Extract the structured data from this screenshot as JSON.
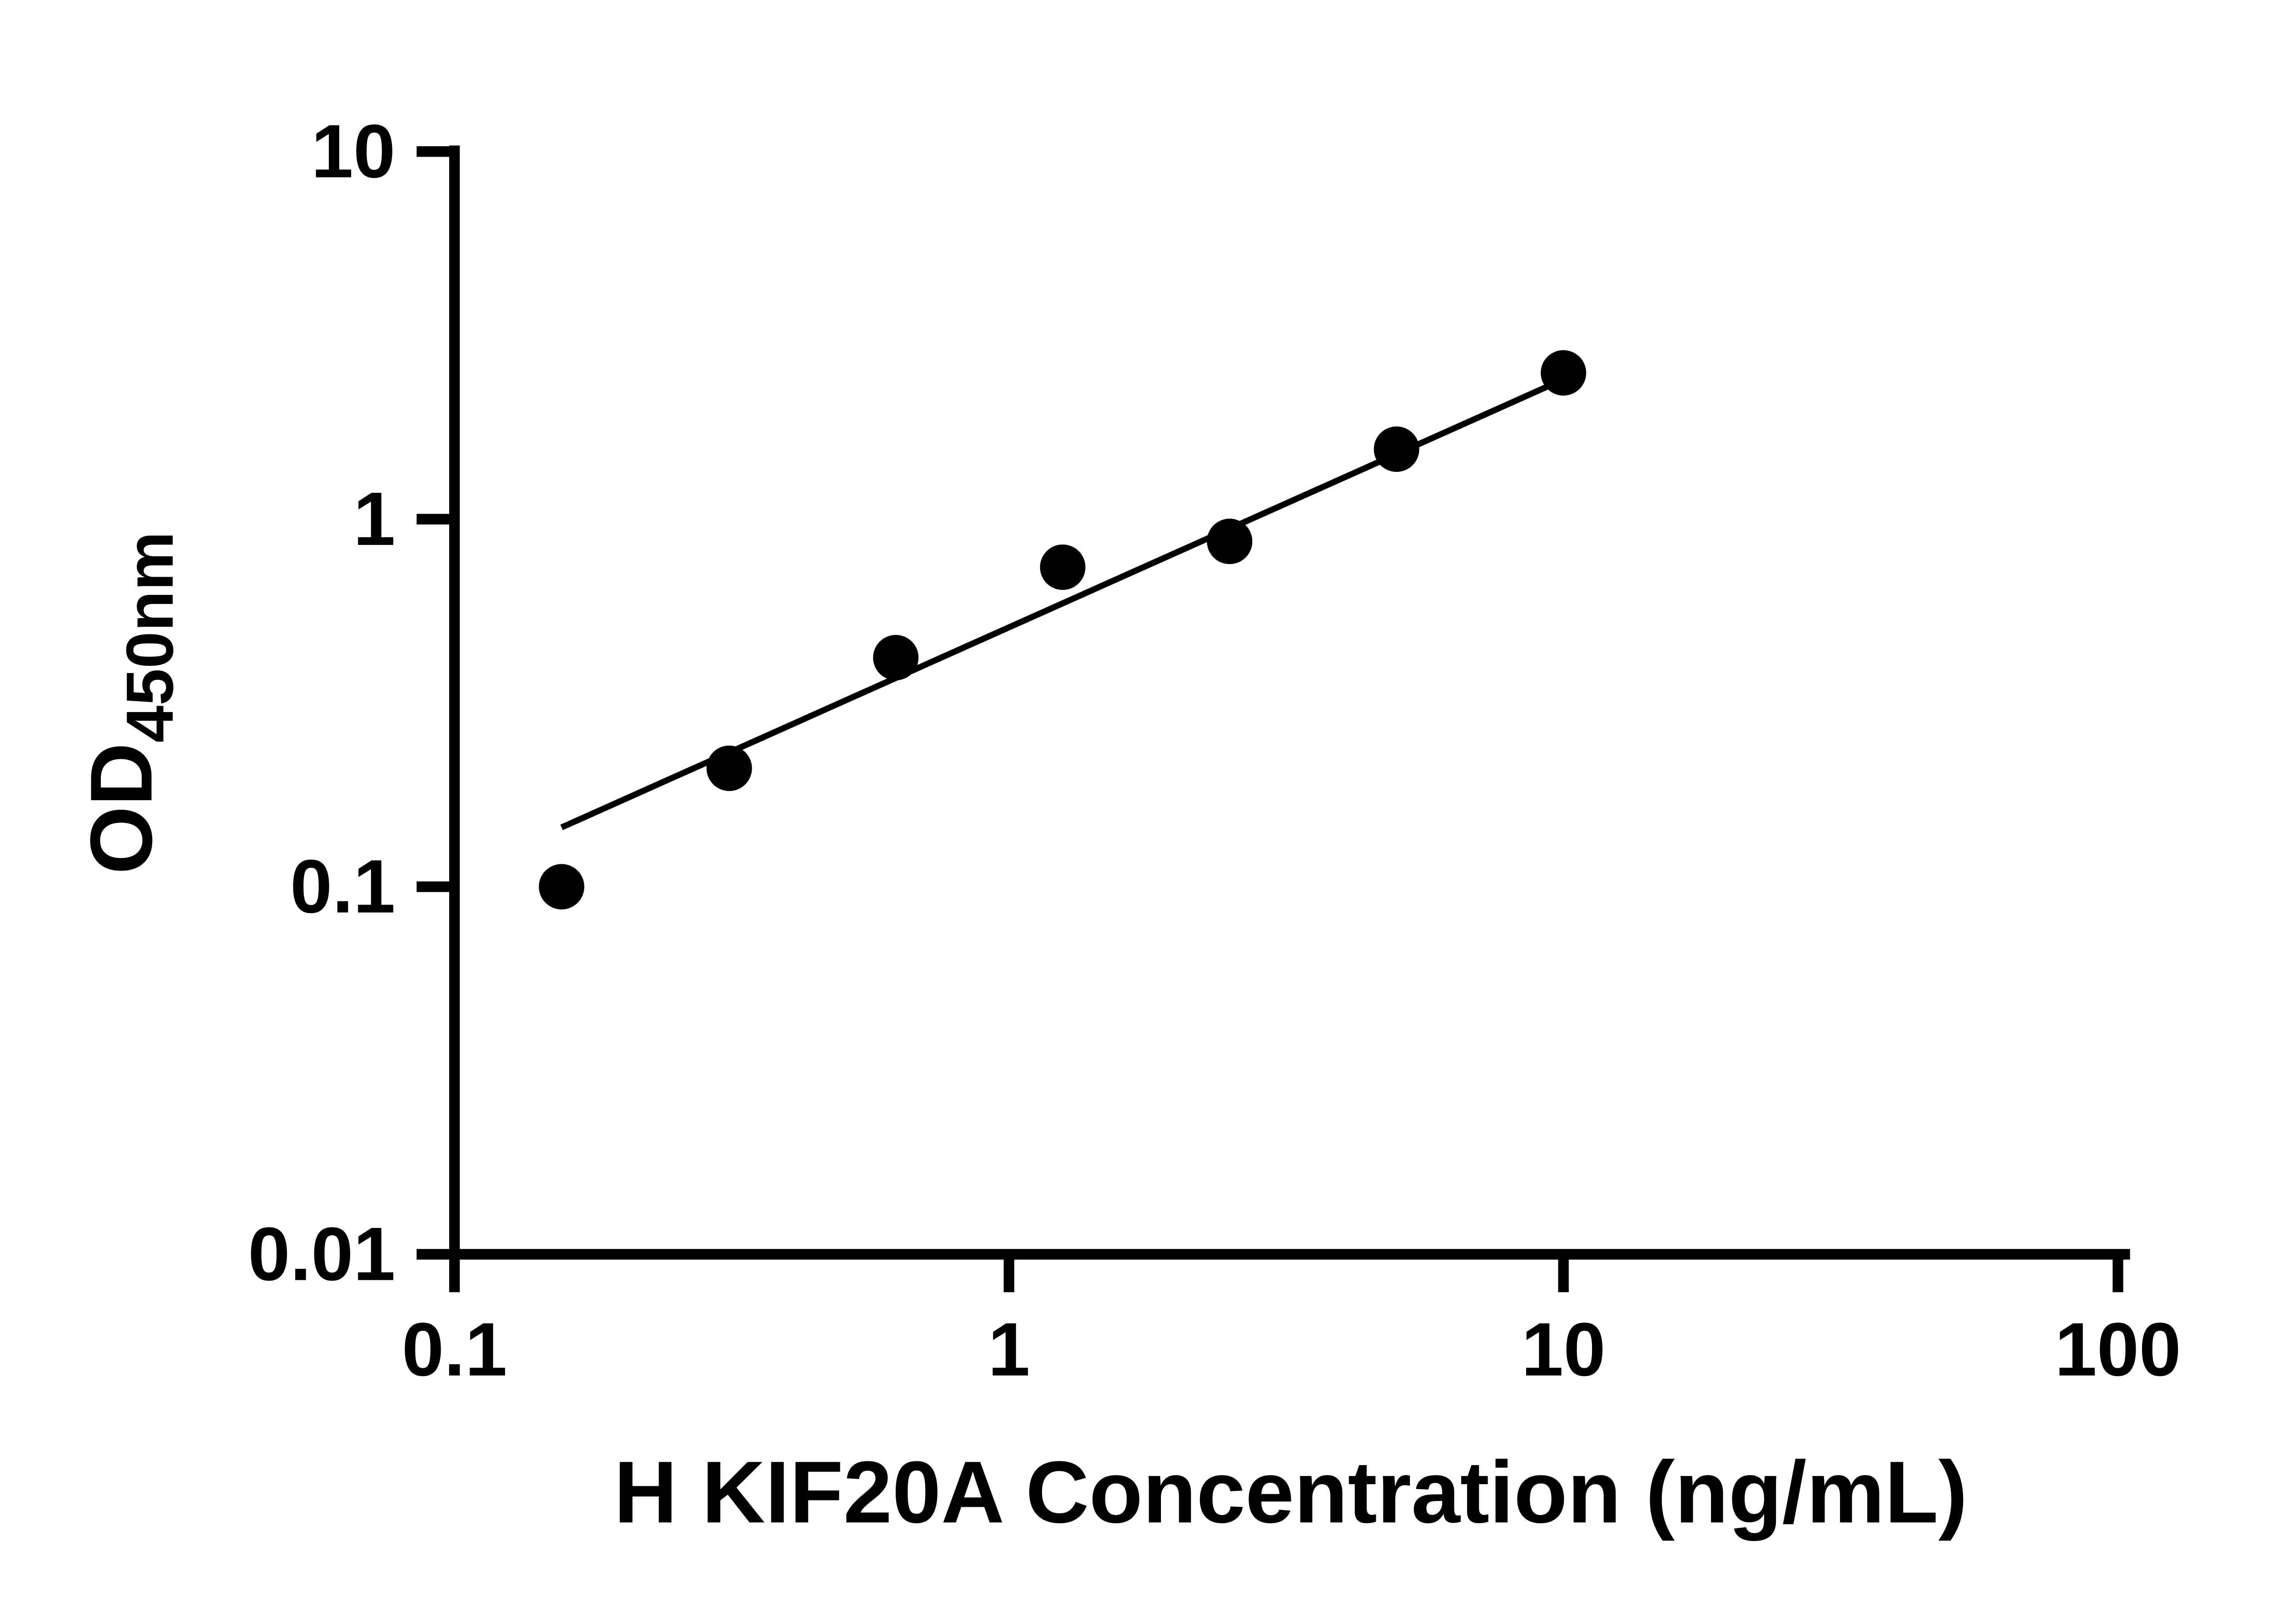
{
  "chart_data": {
    "type": "scatter",
    "title": "",
    "xlabel": "H KIF20A Concentration (ng/mL)",
    "ylabel_main": "OD",
    "ylabel_sub": "450nm",
    "x_scale": "log",
    "y_scale": "log",
    "xlim": [
      0.1,
      100
    ],
    "ylim": [
      0.01,
      10
    ],
    "x_ticks": [
      {
        "value": 0.1,
        "label": "0.1"
      },
      {
        "value": 1,
        "label": "1"
      },
      {
        "value": 10,
        "label": "10"
      },
      {
        "value": 100,
        "label": "100"
      }
    ],
    "y_ticks": [
      {
        "value": 0.01,
        "label": "0.01"
      },
      {
        "value": 0.1,
        "label": "0.1"
      },
      {
        "value": 1,
        "label": "1"
      },
      {
        "value": 10,
        "label": "10"
      }
    ],
    "points": [
      {
        "x": 0.156,
        "y": 0.1
      },
      {
        "x": 0.313,
        "y": 0.21
      },
      {
        "x": 0.625,
        "y": 0.42
      },
      {
        "x": 1.25,
        "y": 0.74
      },
      {
        "x": 2.5,
        "y": 0.87
      },
      {
        "x": 5,
        "y": 1.55
      },
      {
        "x": 10,
        "y": 2.5
      }
    ],
    "trendline": {
      "x1": 0.156,
      "y1": 0.145,
      "x2": 10,
      "y2": 2.4
    },
    "legend": null,
    "grid": "off",
    "colors": {
      "points": "#000000",
      "line": "#000000",
      "axis": "#000000",
      "background": "#ffffff"
    }
  }
}
